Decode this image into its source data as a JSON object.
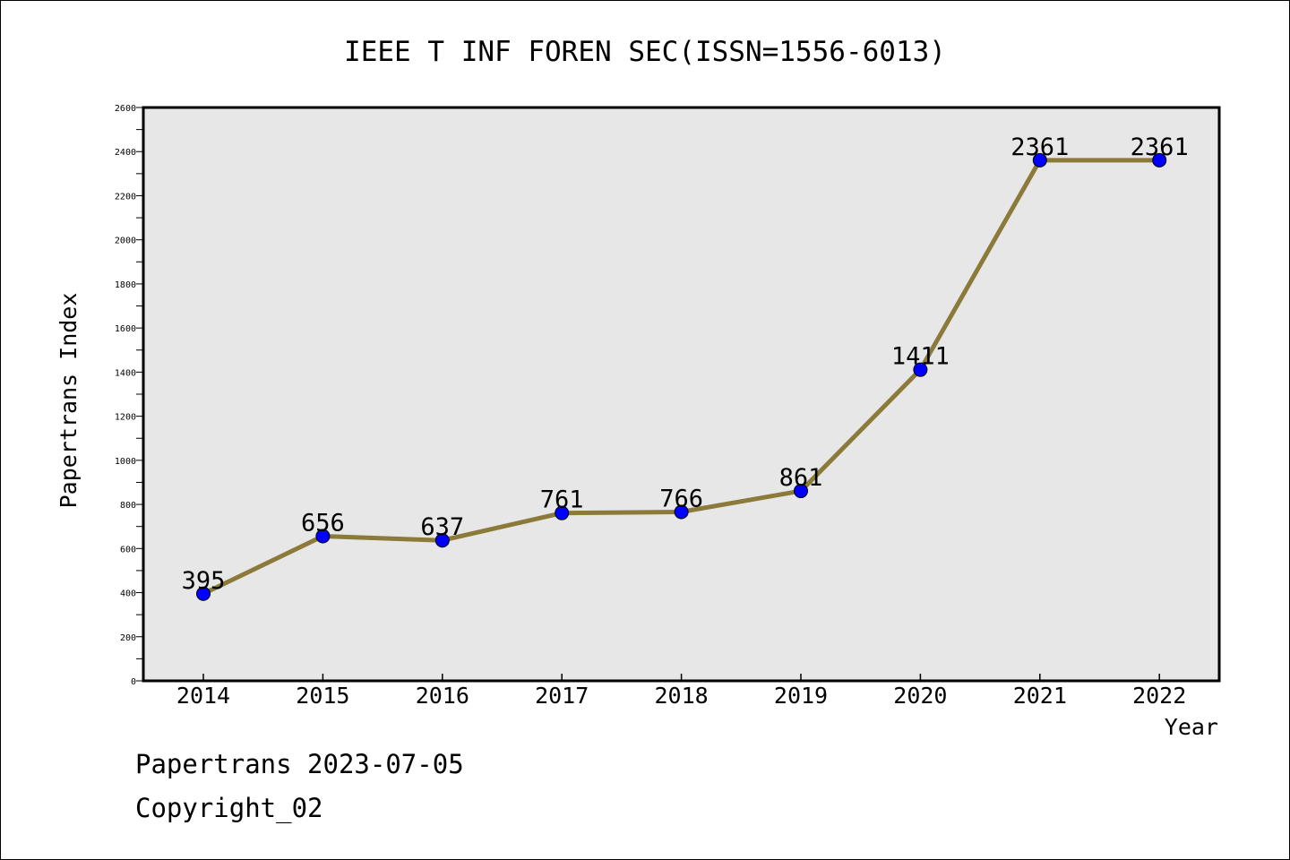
{
  "chart_data": {
    "type": "line",
    "title": "IEEE T INF FOREN SEC(ISSN=1556-6013)",
    "xlabel": "Year",
    "ylabel": "Papertrans Index",
    "categories": [
      "2014",
      "2015",
      "2016",
      "2017",
      "2018",
      "2019",
      "2020",
      "2021",
      "2022"
    ],
    "values": [
      395,
      656,
      637,
      761,
      766,
      861,
      1411,
      2361,
      2361
    ],
    "ylim": [
      0,
      2600
    ],
    "y_ticks": [
      0,
      200,
      400,
      600,
      800,
      1000,
      1200,
      1400,
      1600,
      1800,
      2000,
      2200,
      2400,
      2600
    ],
    "grid": false,
    "legend": "none",
    "colors": {
      "line": "#8c7a3a",
      "marker": "#0000ff",
      "plot_background": "#e7e7e7"
    }
  },
  "footer": {
    "line1": "Papertrans 2023-07-05",
    "line2": "Copyright_02"
  }
}
